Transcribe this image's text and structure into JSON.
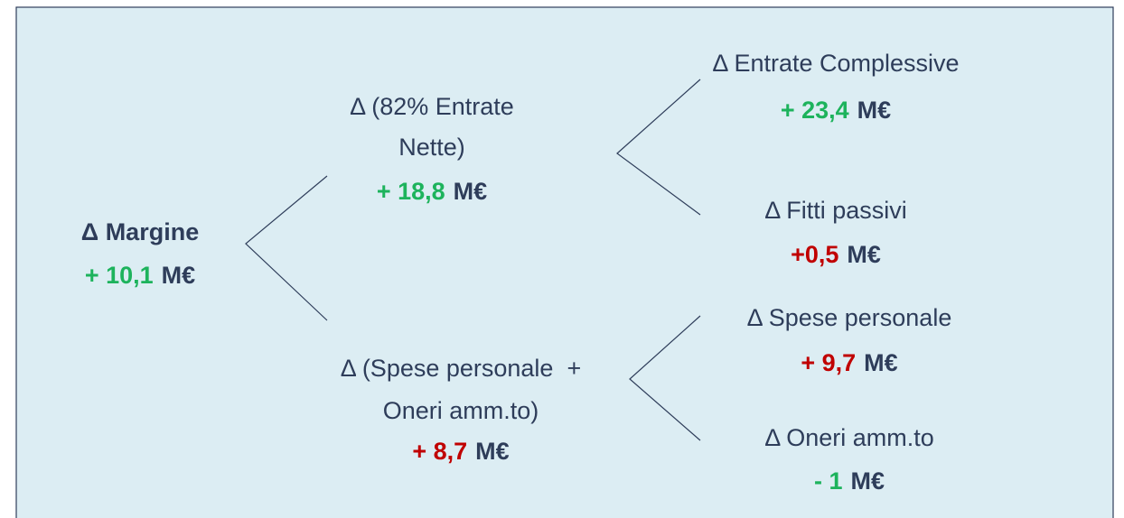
{
  "nodes": [
    {
      "label": [
        "Δ Margine"
      ],
      "value": "+ 10,1",
      "unit": "M€"
    },
    {
      "label": [
        "Δ (82% Entrate",
        "Nette)"
      ],
      "value": "+ 18,8",
      "unit": "M€"
    },
    {
      "label": [
        "Δ (Spese personale  +",
        "Oneri amm.to)"
      ],
      "value": "+ 8,7",
      "unit": "M€"
    },
    {
      "label": [
        "Δ Entrate Complessive"
      ],
      "value": "+ 23,4",
      "unit": "M€"
    },
    {
      "label": [
        "Δ Fitti passivi"
      ],
      "value": "+0,5",
      "unit": "M€"
    },
    {
      "label": [
        "Δ Spese personale"
      ],
      "value": "+ 9,7",
      "unit": "M€"
    },
    {
      "label": [
        "Δ Oneri amm.to"
      ],
      "value": "- 1",
      "unit": "M€"
    }
  ]
}
